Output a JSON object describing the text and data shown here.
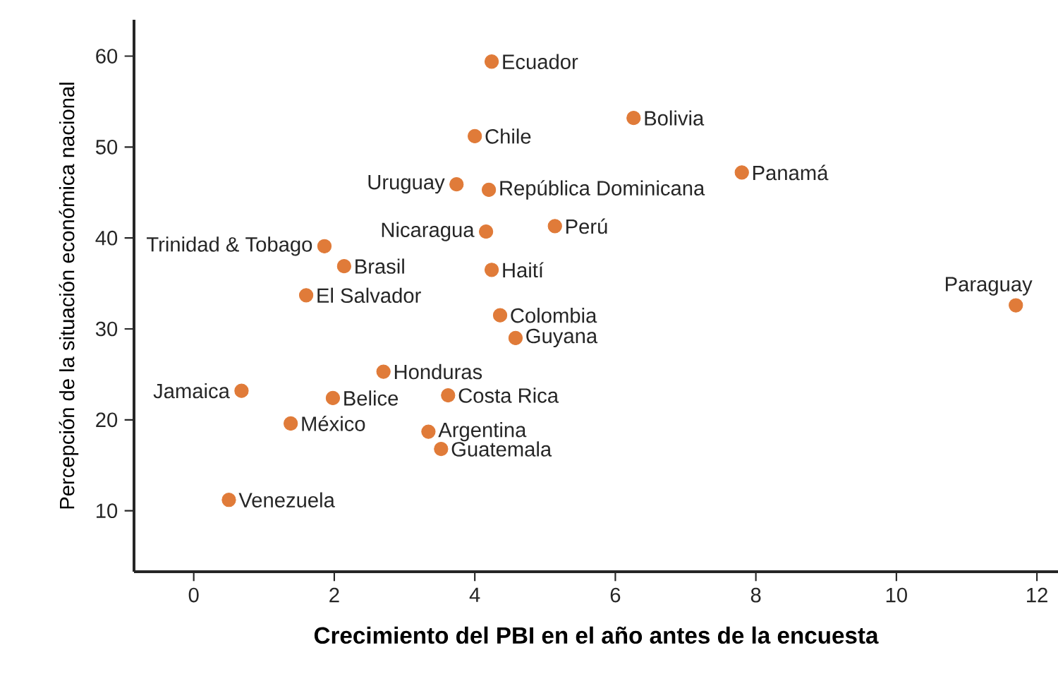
{
  "chart_data": {
    "type": "scatter",
    "xlabel": "Crecimiento del PBI en el año antes de la encuesta",
    "ylabel": "Percepción de la situación económica nacional",
    "xlim": [
      -0.85,
      12.3
    ],
    "ylim": [
      3.3,
      64
    ],
    "xticks": [
      0,
      2,
      4,
      6,
      8,
      10,
      12
    ],
    "yticks": [
      10,
      20,
      30,
      40,
      50,
      60
    ],
    "marker": "circle",
    "series": [
      {
        "color": "#e07b39",
        "x": [
          4.24,
          6.26,
          4.0,
          7.8,
          3.74,
          4.2,
          4.16,
          5.14,
          1.86,
          2.14,
          4.24,
          1.6,
          11.7,
          4.36,
          4.58,
          2.7,
          0.68,
          1.98,
          3.62,
          1.38,
          3.34,
          3.52,
          0.5
        ],
        "values": [
          59.4,
          53.2,
          51.2,
          47.2,
          45.9,
          45.3,
          40.7,
          41.3,
          39.1,
          36.9,
          36.5,
          33.7,
          32.6,
          31.5,
          29.0,
          25.3,
          23.2,
          22.4,
          22.7,
          19.6,
          18.7,
          16.8,
          11.2
        ]
      }
    ],
    "annotations": [
      {
        "text": "Ecuador",
        "x": 4.24,
        "y": 59.4
      },
      {
        "text": "Bolivia",
        "x": 6.26,
        "y": 53.2
      },
      {
        "text": "Chile",
        "x": 4.0,
        "y": 51.2
      },
      {
        "text": "Panamá",
        "x": 7.8,
        "y": 47.2
      },
      {
        "text": "Uruguay",
        "x": 3.74,
        "y": 45.9
      },
      {
        "text": "República Dominicana",
        "x": 4.2,
        "y": 45.3
      },
      {
        "text": "Nicaragua",
        "x": 4.16,
        "y": 40.7
      },
      {
        "text": "Perú",
        "x": 5.14,
        "y": 41.3
      },
      {
        "text": "Trinidad & Tobago",
        "x": 1.86,
        "y": 39.1
      },
      {
        "text": "Brasil",
        "x": 2.14,
        "y": 36.9
      },
      {
        "text": "Haití",
        "x": 4.24,
        "y": 36.5
      },
      {
        "text": "El Salvador",
        "x": 1.6,
        "y": 33.7
      },
      {
        "text": "Paraguay",
        "x": 11.7,
        "y": 32.6
      },
      {
        "text": "Colombia",
        "x": 4.36,
        "y": 31.5
      },
      {
        "text": "Guyana",
        "x": 4.58,
        "y": 29.0
      },
      {
        "text": "Honduras",
        "x": 2.7,
        "y": 25.3
      },
      {
        "text": "Jamaica",
        "x": 0.68,
        "y": 23.2
      },
      {
        "text": "Belice",
        "x": 1.98,
        "y": 22.4
      },
      {
        "text": "Costa Rica",
        "x": 3.62,
        "y": 22.7
      },
      {
        "text": "México",
        "x": 1.38,
        "y": 19.6
      },
      {
        "text": "Argentina",
        "x": 3.34,
        "y": 18.7
      },
      {
        "text": "Guatemala",
        "x": 3.52,
        "y": 16.8
      },
      {
        "text": "Venezuela",
        "x": 0.5,
        "y": 11.2
      }
    ]
  }
}
